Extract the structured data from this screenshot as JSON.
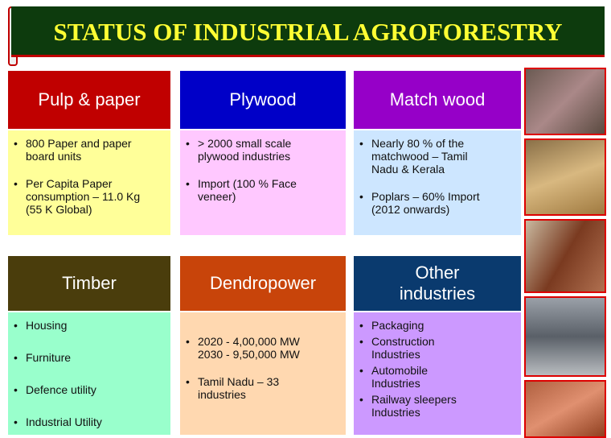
{
  "title": "STATUS OF INDUSTRIAL AGROFORESTRY",
  "cards": [
    {
      "title": "Pulp & paper",
      "bullets": [
        "800 Paper and paper\nboard units",
        "Per Capita Paper\nconsumption – 11.0 Kg\n(55 K Global)"
      ]
    },
    {
      "title": "Plywood",
      "bullets": [
        "> 2000 small scale\nplywood industries",
        "Import (100 % Face\nveneer)"
      ]
    },
    {
      "title": "Match wood",
      "bullets": [
        "Nearly 80 % of the\nmatchwood  – Tamil\nNadu & Kerala",
        "Poplars – 60% Import\n(2012 onwards)"
      ]
    },
    {
      "title": "Timber",
      "bullets": [
        "Housing",
        "Furniture",
        "Defence utility",
        "Industrial Utility"
      ]
    },
    {
      "title": "Dendropower",
      "bullets": [
        "2020  - 4,00,000 MW\n2030  - 9,50,000 MW",
        "Tamil Nadu – 33\nindustries"
      ]
    },
    {
      "title": "Other\nindustries",
      "bullets": [
        "Packaging",
        "Construction\nIndustries",
        "Automobile\nIndustries",
        "Railway sleepers\nIndustries"
      ]
    }
  ]
}
